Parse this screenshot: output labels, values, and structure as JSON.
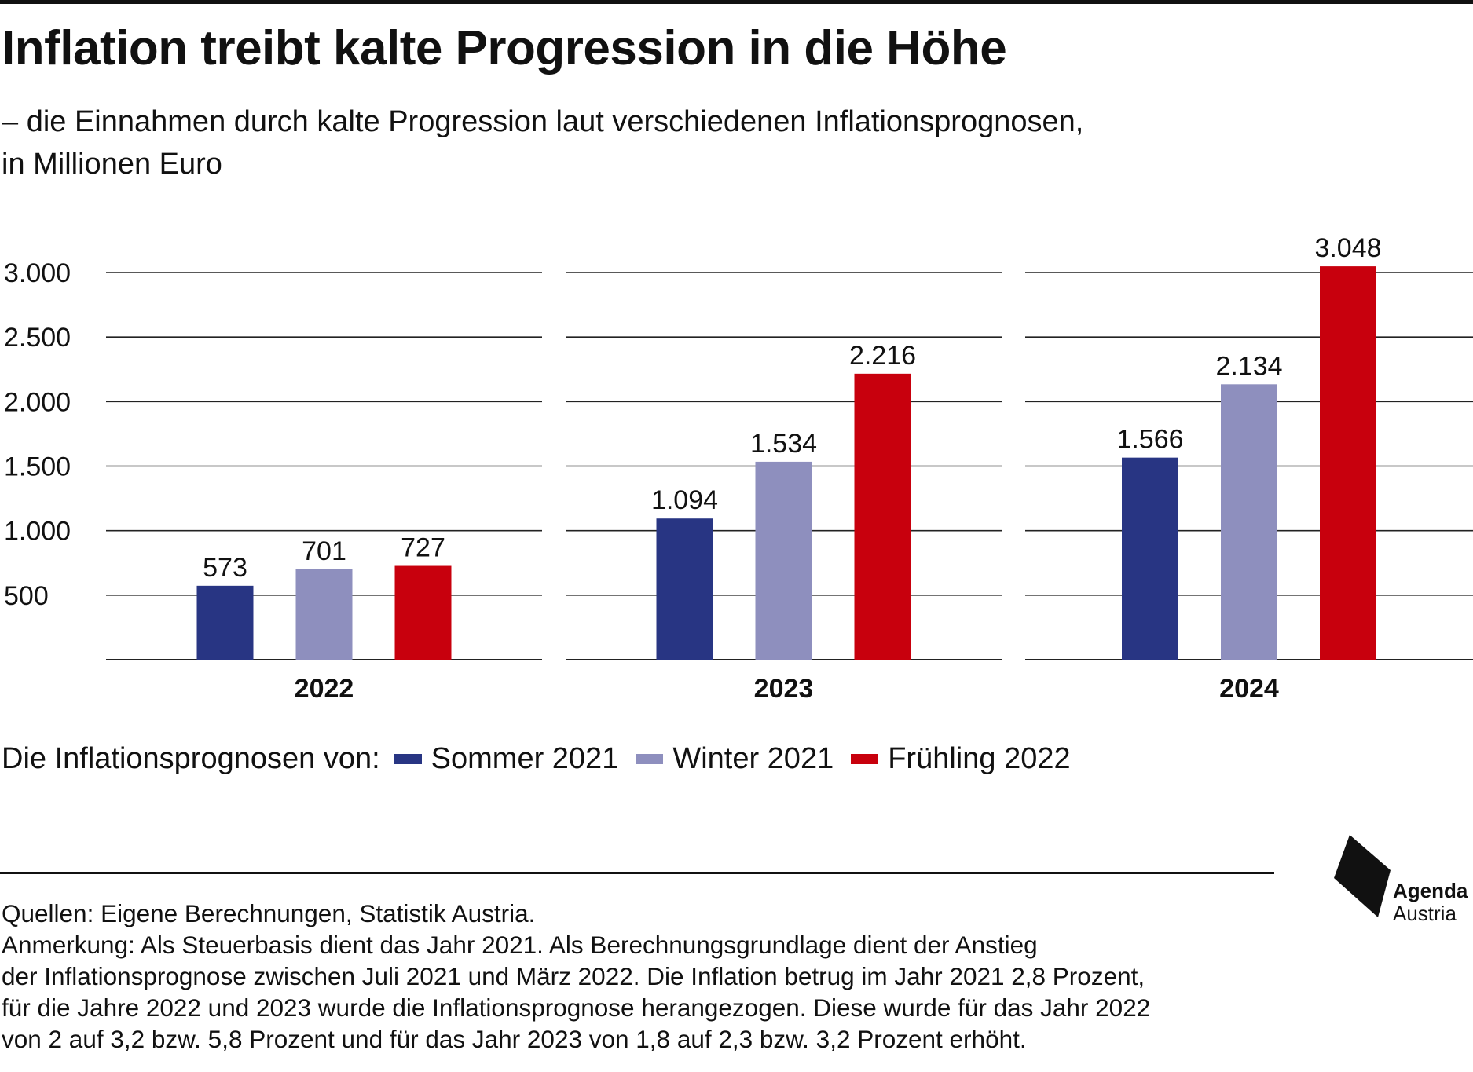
{
  "title": "Inflation treibt kalte Progression in die Höhe",
  "subtitle_line1": "– die Einnahmen durch kalte Progression laut verschiedenen Inflationsprognosen,",
  "subtitle_line2": "in Millionen Euro",
  "legend": {
    "label": "Die Inflationsprognosen von:",
    "items": [
      {
        "name": "Sommer 2021",
        "color": "#283583"
      },
      {
        "name": "Winter 2021",
        "color": "#8e8fbe"
      },
      {
        "name": "Frühling 2022",
        "color": "#c8000d"
      }
    ]
  },
  "footer": {
    "sources": "Quellen: Eigene Berechnungen, Statistik Austria.",
    "note_lines": [
      "Anmerkung: Als Steuerbasis dient das Jahr 2021. Als Berechnungsgrundlage dient der Anstieg",
      "der Inflationsprognose zwischen Juli 2021 und März 2022. Die Inflation betrug im Jahr 2021 2,8 Prozent,",
      "für die Jahre 2022 und 2023 wurde die Inflationsprognose herangezogen. Diese wurde für das Jahr 2022",
      "von 2 auf 3,2 bzw. 5,8 Prozent und für das Jahr 2023 von 1,8 auf 2,3 bzw. 3,2 Prozent erhöht."
    ]
  },
  "logo": {
    "line1": "Agenda",
    "line2": "Austria"
  },
  "chart_data": {
    "type": "bar",
    "categories": [
      "2022",
      "2023",
      "2024"
    ],
    "series": [
      {
        "name": "Sommer 2021",
        "color": "#283583",
        "values": [
          573,
          1094,
          1566
        ],
        "labels": [
          "573",
          "1.094",
          "1.566"
        ]
      },
      {
        "name": "Winter 2021",
        "color": "#8e8fbe",
        "values": [
          701,
          1534,
          2134
        ],
        "labels": [
          "701",
          "1.534",
          "2.134"
        ]
      },
      {
        "name": "Frühling 2022",
        "color": "#c8000d",
        "values": [
          727,
          2216,
          3048
        ],
        "labels": [
          "727",
          "2.216",
          "3.048"
        ]
      }
    ],
    "y_ticks": [
      500,
      1000,
      1500,
      2000,
      2500,
      3000
    ],
    "y_tick_labels": [
      "500",
      "1.000",
      "1.500",
      "2.000",
      "2.500",
      "3.000"
    ],
    "ylim": [
      0,
      3000
    ],
    "grid": true,
    "legend_position": "bottom-left"
  }
}
